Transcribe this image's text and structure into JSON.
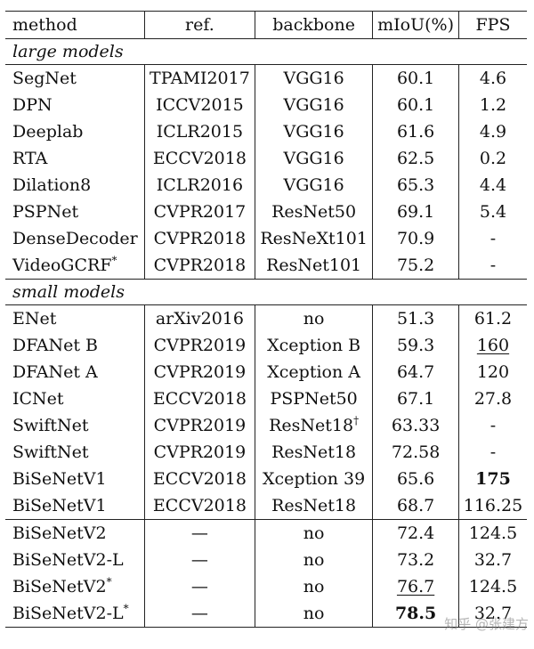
{
  "headers": {
    "method": "method",
    "ref": "ref.",
    "backbone": "backbone",
    "miou": "mIoU(%)",
    "fps": "FPS"
  },
  "sections": {
    "large": "large models",
    "small": "small models"
  },
  "large": [
    {
      "method": "SegNet",
      "ref": "TPAMI2017",
      "backbone": "VGG16",
      "miou": "60.1",
      "fps": "4.6"
    },
    {
      "method": "DPN",
      "ref": "ICCV2015",
      "backbone": "VGG16",
      "miou": "60.1",
      "fps": "1.2"
    },
    {
      "method": "Deeplab",
      "ref": "ICLR2015",
      "backbone": "VGG16",
      "miou": "61.6",
      "fps": "4.9"
    },
    {
      "method": "RTA",
      "ref": "ECCV2018",
      "backbone": "VGG16",
      "miou": "62.5",
      "fps": "0.2"
    },
    {
      "method": "Dilation8",
      "ref": "ICLR2016",
      "backbone": "VGG16",
      "miou": "65.3",
      "fps": "4.4"
    },
    {
      "method": "PSPNet",
      "ref": "CVPR2017",
      "backbone": "ResNet50",
      "miou": "69.1",
      "fps": "5.4"
    },
    {
      "method": "DenseDecoder",
      "ref": "CVPR2018",
      "backbone": "ResNeXt101",
      "miou": "70.9",
      "fps": "-"
    },
    {
      "method": "VideoGCRF",
      "mark": "*",
      "ref": "CVPR2018",
      "backbone": "ResNet101",
      "miou": "75.2",
      "fps": "-"
    }
  ],
  "small": [
    {
      "method": "ENet",
      "ref": "arXiv2016",
      "backbone": "no",
      "miou": "51.3",
      "fps": "61.2"
    },
    {
      "method": "DFANet B",
      "ref": "CVPR2019",
      "backbone": "Xception B",
      "miou": "59.3",
      "fps": "160"
    },
    {
      "method": "DFANet A",
      "ref": "CVPR2019",
      "backbone": "Xception A",
      "miou": "64.7",
      "fps": "120"
    },
    {
      "method": "ICNet",
      "ref": "ECCV2018",
      "backbone": "PSPNet50",
      "miou": "67.1",
      "fps": "27.8"
    },
    {
      "method": "SwiftNet",
      "ref": "CVPR2019",
      "backbone": "ResNet18",
      "bmark": "†",
      "miou": "63.33",
      "fps": "-"
    },
    {
      "method": "SwiftNet",
      "ref": "CVPR2019",
      "backbone": "ResNet18",
      "miou": "72.58",
      "fps": "-"
    },
    {
      "method": "BiSeNetV1",
      "ref": "ECCV2018",
      "backbone": "Xception 39",
      "miou": "65.6",
      "fps": "175"
    },
    {
      "method": "BiSeNetV1",
      "ref": "ECCV2018",
      "backbone": "ResNet18",
      "miou": "68.7",
      "fps": "116.25"
    }
  ],
  "ours": [
    {
      "method": "BiSeNetV2",
      "ref": "—",
      "backbone": "no",
      "miou": "72.4",
      "fps": "124.5"
    },
    {
      "method": "BiSeNetV2-L",
      "ref": "—",
      "backbone": "no",
      "miou": "73.2",
      "fps": "32.7"
    },
    {
      "method": "BiSeNetV2",
      "mark": "*",
      "ref": "—",
      "backbone": "no",
      "miou": "76.7",
      "fps": "124.5"
    },
    {
      "method": "BiSeNetV2-L",
      "mark": "*",
      "ref": "—",
      "backbone": "no",
      "miou": "78.5",
      "fps": "32.7"
    }
  ],
  "watermark": "知乎 @张建方"
}
